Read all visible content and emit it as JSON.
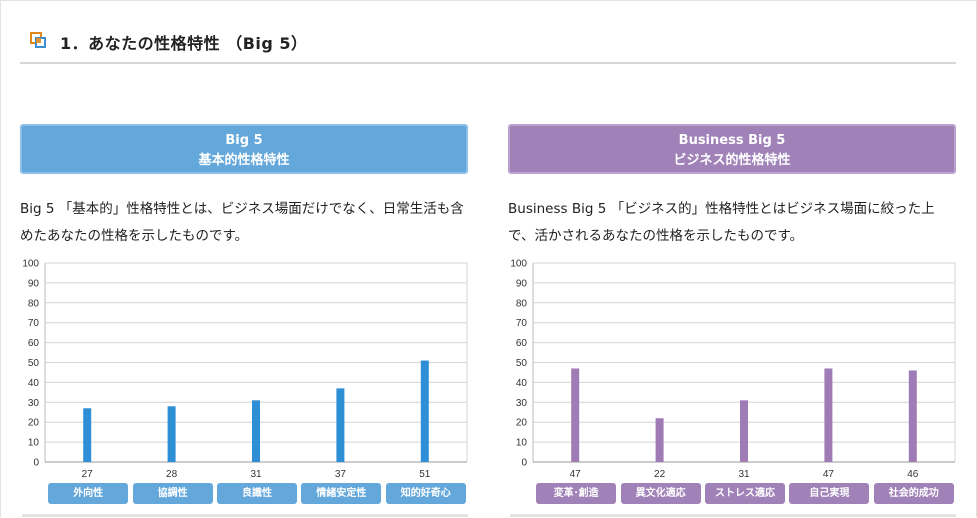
{
  "section": {
    "title": "1．あなたの性格特性 （Big 5）",
    "icon": "square-stack-icon"
  },
  "left_panel": {
    "banner_line1": "Big 5",
    "banner_line2": "基本的性格特性",
    "description": "Big 5 「基本的」性格特性とは、ビジネス場面だけでなく、日常生活も含めたあなたの性格を示したものです。"
  },
  "right_panel": {
    "banner_line1": "Business Big 5",
    "banner_line2": "ビジネス的性格特性",
    "description": "Business Big 5 「ビジネス的」性格特性とはビジネス場面に絞った上で、活かされるあなたの性格を示したものです。"
  },
  "colors": {
    "blue": "#64a8db",
    "bar_blue": "#2f8fd6",
    "purple": "#a082b8",
    "bar_purple": "#a07cb6"
  },
  "chart_data": [
    {
      "type": "bar",
      "categories": [
        "外向性",
        "協調性",
        "良識性",
        "情緒安定性",
        "知的好奇心"
      ],
      "values": [
        27,
        28,
        31,
        37,
        51
      ],
      "ylim": [
        0,
        100
      ],
      "yticks": [
        0,
        10,
        20,
        30,
        40,
        50,
        60,
        70,
        80,
        90,
        100
      ],
      "grid": true
    },
    {
      "type": "bar",
      "categories": [
        "変革･創造",
        "異文化適応",
        "ストレス適応",
        "自己実現",
        "社会的成功"
      ],
      "values": [
        47,
        22,
        31,
        47,
        46
      ],
      "ylim": [
        0,
        100
      ],
      "yticks": [
        0,
        10,
        20,
        30,
        40,
        50,
        60,
        70,
        80,
        90,
        100
      ],
      "grid": true
    }
  ]
}
